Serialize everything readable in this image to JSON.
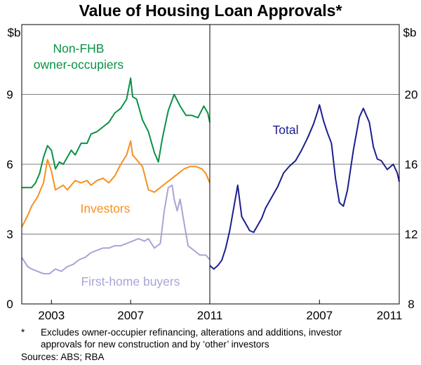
{
  "chart_data": [
    {
      "type": "line",
      "panel": "left",
      "title": "Value of Housing Loan Approvals*",
      "y_unit": "$b",
      "ylim": [
        0,
        12
      ],
      "yticks": [
        0,
        3,
        6,
        9
      ],
      "xlim": [
        2001.5,
        2011.0
      ],
      "xticks": [
        "2003",
        "2007",
        "2011"
      ],
      "series": [
        {
          "name": "Non-FHB owner-occupiers",
          "color": "#0a9145",
          "x": [
            2001.5,
            2001.8,
            2002.0,
            2002.2,
            2002.4,
            2002.6,
            2002.8,
            2003.0,
            2003.2,
            2003.4,
            2003.6,
            2003.8,
            2004.0,
            2004.2,
            2004.5,
            2004.8,
            2005.0,
            2005.3,
            2005.6,
            2005.9,
            2006.2,
            2006.5,
            2006.8,
            2007.0,
            2007.1,
            2007.3,
            2007.6,
            2007.9,
            2008.2,
            2008.4,
            2008.6,
            2008.9,
            2009.2,
            2009.5,
            2009.8,
            2010.1,
            2010.4,
            2010.7,
            2010.9,
            2011.0
          ],
          "y": [
            5.0,
            5.0,
            5.0,
            5.2,
            5.6,
            6.3,
            6.8,
            6.6,
            5.8,
            6.1,
            6.0,
            6.3,
            6.6,
            6.4,
            6.9,
            6.9,
            7.3,
            7.4,
            7.6,
            7.8,
            8.2,
            8.4,
            8.8,
            9.7,
            8.9,
            8.8,
            7.9,
            7.4,
            6.5,
            6.1,
            7.1,
            8.3,
            9.0,
            8.5,
            8.1,
            8.1,
            8.0,
            8.5,
            8.2,
            7.8
          ]
        },
        {
          "name": "Investors",
          "color": "#f7901e",
          "x": [
            2001.5,
            2001.8,
            2002.0,
            2002.3,
            2002.6,
            2002.8,
            2003.0,
            2003.2,
            2003.4,
            2003.6,
            2003.8,
            2004.0,
            2004.2,
            2004.5,
            2004.8,
            2005.0,
            2005.3,
            2005.6,
            2005.9,
            2006.2,
            2006.5,
            2006.8,
            2007.0,
            2007.1,
            2007.3,
            2007.6,
            2007.9,
            2008.2,
            2008.5,
            2008.8,
            2009.1,
            2009.4,
            2009.7,
            2010.0,
            2010.3,
            2010.6,
            2010.8,
            2011.0
          ],
          "y": [
            3.3,
            3.8,
            4.2,
            4.6,
            5.2,
            6.2,
            5.7,
            4.9,
            5.0,
            5.1,
            4.9,
            5.1,
            5.3,
            5.2,
            5.3,
            5.1,
            5.3,
            5.4,
            5.2,
            5.5,
            6.0,
            6.4,
            7.0,
            6.4,
            6.2,
            5.9,
            4.9,
            4.8,
            5.0,
            5.2,
            5.4,
            5.6,
            5.8,
            5.9,
            5.9,
            5.8,
            5.6,
            5.2
          ]
        },
        {
          "name": "First-home buyers",
          "color": "#a6a5d7",
          "x": [
            2001.5,
            2001.8,
            2002.0,
            2002.3,
            2002.6,
            2002.9,
            2003.2,
            2003.5,
            2003.8,
            2004.1,
            2004.4,
            2004.7,
            2005.0,
            2005.3,
            2005.6,
            2005.9,
            2006.2,
            2006.5,
            2006.8,
            2007.1,
            2007.4,
            2007.7,
            2007.9,
            2008.2,
            2008.5,
            2008.7,
            2008.9,
            2009.1,
            2009.2,
            2009.35,
            2009.5,
            2009.7,
            2009.9,
            2010.2,
            2010.5,
            2010.8,
            2011.0
          ],
          "y": [
            2.0,
            1.6,
            1.5,
            1.4,
            1.3,
            1.3,
            1.5,
            1.4,
            1.6,
            1.7,
            1.9,
            2.0,
            2.2,
            2.3,
            2.4,
            2.4,
            2.5,
            2.5,
            2.6,
            2.7,
            2.8,
            2.7,
            2.8,
            2.4,
            2.6,
            4.0,
            5.0,
            5.1,
            4.5,
            4.0,
            4.5,
            3.5,
            2.5,
            2.3,
            2.1,
            2.1,
            1.9
          ]
        }
      ],
      "labels": [
        {
          "text": "Non-FHB",
          "series": 0
        },
        {
          "text": "owner-occupiers",
          "series": 0
        },
        {
          "text": "Investors",
          "series": 1
        },
        {
          "text": "First-home buyers",
          "series": 2
        }
      ]
    },
    {
      "type": "line",
      "panel": "right",
      "y_unit": "$b",
      "ylim": [
        8,
        24
      ],
      "yticks": [
        8,
        12,
        16,
        20
      ],
      "xlim": [
        2001.5,
        2011.0
      ],
      "xticks": [
        "2007",
        "2011"
      ],
      "series": [
        {
          "name": "Total",
          "color": "#1b1f8e",
          "x": [
            2001.5,
            2001.7,
            2001.9,
            2002.1,
            2002.3,
            2002.5,
            2002.7,
            2002.9,
            2003.1,
            2003.3,
            2003.5,
            2003.7,
            2003.9,
            2004.1,
            2004.3,
            2004.6,
            2004.9,
            2005.2,
            2005.5,
            2005.8,
            2006.1,
            2006.4,
            2006.7,
            2006.9,
            2007.0,
            2007.2,
            2007.4,
            2007.6,
            2007.8,
            2008.0,
            2008.2,
            2008.4,
            2008.7,
            2009.0,
            2009.2,
            2009.5,
            2009.7,
            2009.9,
            2010.1,
            2010.4,
            2010.7,
            2010.9,
            2011.0
          ],
          "y": [
            10.2,
            10.0,
            10.2,
            10.5,
            11.2,
            12.2,
            13.5,
            14.8,
            13.0,
            12.6,
            12.2,
            12.1,
            12.5,
            12.9,
            13.5,
            14.1,
            14.7,
            15.5,
            15.9,
            16.2,
            16.8,
            17.5,
            18.3,
            19.0,
            19.4,
            18.5,
            17.8,
            17.2,
            15.2,
            13.8,
            13.6,
            14.5,
            16.8,
            18.7,
            19.2,
            18.4,
            17.0,
            16.3,
            16.2,
            15.7,
            16.0,
            15.5,
            15.0
          ]
        }
      ],
      "labels": [
        {
          "text": "Total",
          "series": 0
        }
      ]
    }
  ],
  "footnote": {
    "marker": "*",
    "line1": "Excludes owner-occupier refinancing, alterations and additions, investor",
    "line2": "approvals for new construction and by ‘other’ investors",
    "sources": "Sources: ABS; RBA"
  }
}
